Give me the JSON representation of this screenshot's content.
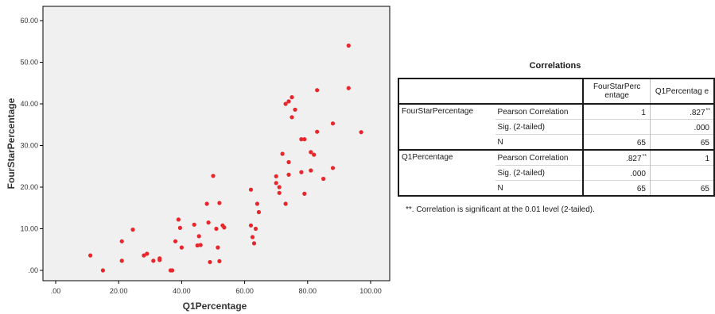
{
  "colors": {
    "plot_bg": "#f0f0f0",
    "point": "#e8262b",
    "axis": "#000000"
  },
  "chart_data": {
    "type": "scatter",
    "xlabel": "Q1Percentage",
    "ylabel": "FourStarPercentage",
    "xlim": [
      0,
      100
    ],
    "ylim": [
      0,
      65
    ],
    "x_tick_labels": [
      ".00",
      "20.00",
      "40.00",
      "60.00",
      "80.00",
      "100.00"
    ],
    "y_tick_labels": [
      ".00",
      "10.00",
      "20.00",
      "30.00",
      "40.00",
      "50.00",
      "60.00"
    ],
    "grid": false,
    "points": [
      [
        11.0,
        3.6
      ],
      [
        15.0,
        0.0
      ],
      [
        21.0,
        7.0
      ],
      [
        21.0,
        2.3
      ],
      [
        24.5,
        9.8
      ],
      [
        28.0,
        3.6
      ],
      [
        29.0,
        4.0
      ],
      [
        31.0,
        2.3
      ],
      [
        33.0,
        2.5
      ],
      [
        33.0,
        2.9
      ],
      [
        36.5,
        0.0
      ],
      [
        37.0,
        0.0
      ],
      [
        38.0,
        7.0
      ],
      [
        39.0,
        12.2
      ],
      [
        39.5,
        10.2
      ],
      [
        40.0,
        5.5
      ],
      [
        44.0,
        11.0
      ],
      [
        45.0,
        6.0
      ],
      [
        45.5,
        8.2
      ],
      [
        46.0,
        6.1
      ],
      [
        48.0,
        16.0
      ],
      [
        48.5,
        11.5
      ],
      [
        49.0,
        2.0
      ],
      [
        50.0,
        22.7
      ],
      [
        51.0,
        10.0
      ],
      [
        51.5,
        5.5
      ],
      [
        52.0,
        16.2
      ],
      [
        52.0,
        2.2
      ],
      [
        53.0,
        10.8
      ],
      [
        53.5,
        10.3
      ],
      [
        62.0,
        19.4
      ],
      [
        62.0,
        10.8
      ],
      [
        62.5,
        8.0
      ],
      [
        63.0,
        6.5
      ],
      [
        63.5,
        10.0
      ],
      [
        64.0,
        16.0
      ],
      [
        64.5,
        14.0
      ],
      [
        70.0,
        21.0
      ],
      [
        70.0,
        22.6
      ],
      [
        71.0,
        20.0
      ],
      [
        71.0,
        18.6
      ],
      [
        72.0,
        28.0
      ],
      [
        73.0,
        40.0
      ],
      [
        73.0,
        16.0
      ],
      [
        74.0,
        26.0
      ],
      [
        74.0,
        40.6
      ],
      [
        74.0,
        23.0
      ],
      [
        75.0,
        41.6
      ],
      [
        75.0,
        36.8
      ],
      [
        76.0,
        38.6
      ],
      [
        78.0,
        31.5
      ],
      [
        78.0,
        23.6
      ],
      [
        79.0,
        18.4
      ],
      [
        79.0,
        31.5
      ],
      [
        81.0,
        28.4
      ],
      [
        81.0,
        24.0
      ],
      [
        82.0,
        27.8
      ],
      [
        83.0,
        43.3
      ],
      [
        83.0,
        33.3
      ],
      [
        85.0,
        22.0
      ],
      [
        88.0,
        35.3
      ],
      [
        88.0,
        24.6
      ],
      [
        93.0,
        54.0
      ],
      [
        93.0,
        43.8
      ],
      [
        97.0,
        33.2
      ]
    ]
  },
  "table": {
    "title": "Correlations",
    "col_headers": [
      "FourStarPerc entage",
      "Q1Percentag e"
    ],
    "groups": [
      {
        "label": "FourStarPercentage",
        "rows": [
          {
            "stat": "Pearson Correlation",
            "v1": "1",
            "v1_sup": "",
            "v2": ".827",
            "v2_sup": "**"
          },
          {
            "stat": "Sig. (2-tailed)",
            "v1": "",
            "v1_sup": "",
            "v2": ".000",
            "v2_sup": ""
          },
          {
            "stat": "N",
            "v1": "65",
            "v1_sup": "",
            "v2": "65",
            "v2_sup": ""
          }
        ]
      },
      {
        "label": "Q1Percentage",
        "rows": [
          {
            "stat": "Pearson Correlation",
            "v1": ".827",
            "v1_sup": "**",
            "v2": "1",
            "v2_sup": ""
          },
          {
            "stat": "Sig. (2-tailed)",
            "v1": ".000",
            "v1_sup": "",
            "v2": "",
            "v2_sup": ""
          },
          {
            "stat": "N",
            "v1": "65",
            "v1_sup": "",
            "v2": "65",
            "v2_sup": ""
          }
        ]
      }
    ],
    "footnote": "**. Correlation is significant at the 0.01 level (2-tailed)."
  }
}
